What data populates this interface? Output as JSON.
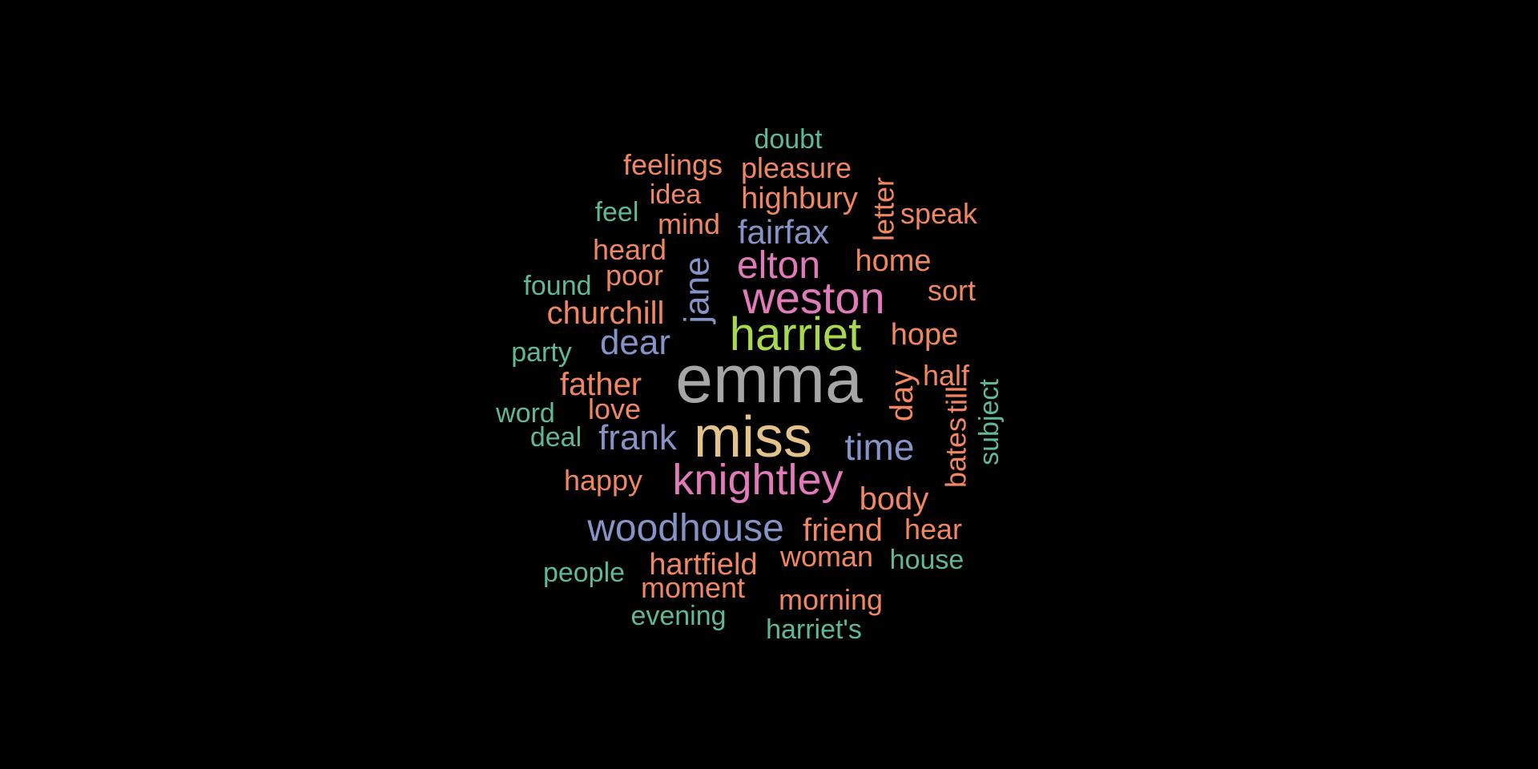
{
  "palette": {
    "background": "#000000",
    "gray": "#a6a6a6",
    "tan": "#e3c38a",
    "green": "#a7d84f",
    "pink": "#e07ab8",
    "blue": "#8593c6",
    "orange": "#f08662",
    "teal": "#5fba93"
  },
  "words": [
    {
      "text": "emma",
      "color": "gray"
    },
    {
      "text": "miss",
      "color": "tan"
    },
    {
      "text": "harriet",
      "color": "green"
    },
    {
      "text": "weston",
      "color": "pink"
    },
    {
      "text": "knightley",
      "color": "pink"
    },
    {
      "text": "elton",
      "color": "pink"
    },
    {
      "text": "woodhouse",
      "color": "blue"
    },
    {
      "text": "jane",
      "color": "blue"
    },
    {
      "text": "fairfax",
      "color": "blue"
    },
    {
      "text": "dear",
      "color": "blue"
    },
    {
      "text": "frank",
      "color": "blue"
    },
    {
      "text": "time",
      "color": "blue"
    },
    {
      "text": "churchill",
      "color": "orange"
    },
    {
      "text": "father",
      "color": "orange"
    },
    {
      "text": "hartfield",
      "color": "orange"
    },
    {
      "text": "friend",
      "color": "orange"
    },
    {
      "text": "body",
      "color": "orange"
    },
    {
      "text": "day",
      "color": "orange"
    },
    {
      "text": "hope",
      "color": "orange"
    },
    {
      "text": "home",
      "color": "orange"
    },
    {
      "text": "pleasure",
      "color": "orange"
    },
    {
      "text": "highbury",
      "color": "orange"
    },
    {
      "text": "feelings",
      "color": "orange"
    },
    {
      "text": "heard",
      "color": "orange"
    },
    {
      "text": "poor",
      "color": "orange"
    },
    {
      "text": "happy",
      "color": "orange"
    },
    {
      "text": "woman",
      "color": "orange"
    },
    {
      "text": "moment",
      "color": "orange"
    },
    {
      "text": "morning",
      "color": "orange"
    },
    {
      "text": "mind",
      "color": "orange"
    },
    {
      "text": "idea",
      "color": "orange"
    },
    {
      "text": "speak",
      "color": "orange"
    },
    {
      "text": "sort",
      "color": "orange"
    },
    {
      "text": "half",
      "color": "orange"
    },
    {
      "text": "love",
      "color": "orange"
    },
    {
      "text": "hear",
      "color": "orange"
    },
    {
      "text": "letter",
      "color": "orange"
    },
    {
      "text": "bates",
      "color": "orange"
    },
    {
      "text": "till",
      "color": "orange"
    },
    {
      "text": "doubt",
      "color": "teal"
    },
    {
      "text": "feel",
      "color": "teal"
    },
    {
      "text": "found",
      "color": "teal"
    },
    {
      "text": "party",
      "color": "teal"
    },
    {
      "text": "word",
      "color": "teal"
    },
    {
      "text": "deal",
      "color": "teal"
    },
    {
      "text": "people",
      "color": "teal"
    },
    {
      "text": "evening",
      "color": "teal"
    },
    {
      "text": "harriet's",
      "color": "teal"
    },
    {
      "text": "house",
      "color": "teal"
    },
    {
      "text": "subject",
      "color": "teal"
    }
  ]
}
